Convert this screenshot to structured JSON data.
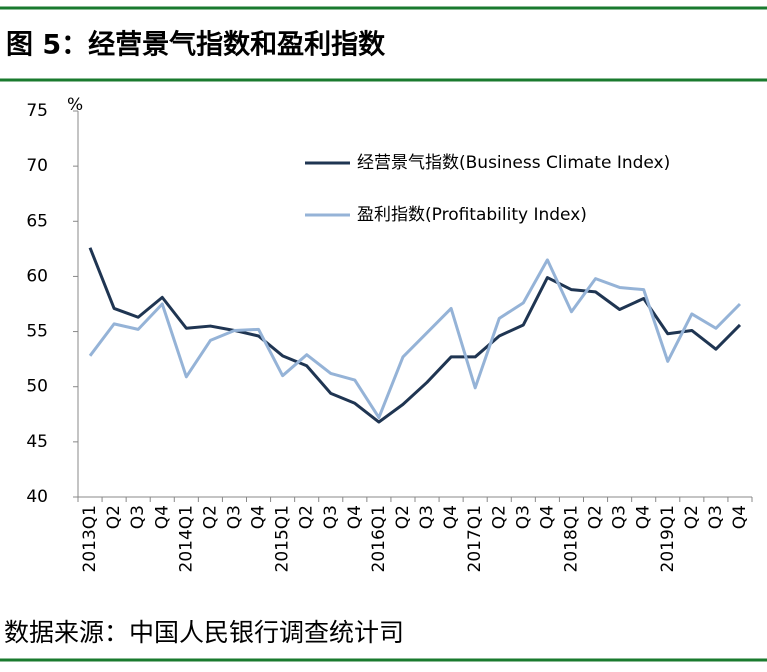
{
  "title": "图 5：经营景气指数和盈利指数",
  "source": "数据来源：中国人民银行调查统计司",
  "chart_data": {
    "type": "line",
    "unit": "%",
    "categories": [
      "2013Q1",
      "Q2",
      "Q3",
      "Q4",
      "2014Q1",
      "Q2",
      "Q3",
      "Q4",
      "2015Q1",
      "Q2",
      "Q3",
      "Q4",
      "2016Q1",
      "Q2",
      "Q3",
      "Q4",
      "2017Q1",
      "Q2",
      "Q3",
      "Q4",
      "2018Q1",
      "Q2",
      "Q3",
      "Q4",
      "2019Q1",
      "Q2",
      "Q3",
      "Q4"
    ],
    "series": [
      {
        "name": "经营景气指数(Business Climate Index)",
        "color": "#1f3552",
        "values": [
          62.6,
          57.1,
          56.3,
          58.1,
          55.3,
          55.5,
          55.1,
          54.6,
          52.8,
          51.9,
          49.4,
          48.5,
          46.8,
          48.4,
          50.4,
          52.7,
          52.7,
          54.6,
          55.6,
          59.9,
          58.8,
          58.6,
          57.0,
          58.0,
          54.8,
          55.1,
          53.4,
          55.6
        ]
      },
      {
        "name": "盈利指数(Profitability Index)",
        "color": "#95b3d7",
        "values": [
          52.8,
          55.7,
          55.2,
          57.5,
          50.9,
          54.2,
          55.1,
          55.2,
          51.0,
          52.9,
          51.2,
          50.6,
          47.2,
          52.7,
          54.9,
          57.1,
          49.9,
          56.2,
          57.6,
          61.5,
          56.8,
          59.8,
          59.0,
          58.8,
          52.3,
          56.6,
          55.3,
          57.5
        ]
      }
    ],
    "ylim": [
      40,
      75
    ],
    "yticks": [
      40,
      45,
      50,
      55,
      60,
      65,
      70,
      75
    ],
    "grid": false
  }
}
